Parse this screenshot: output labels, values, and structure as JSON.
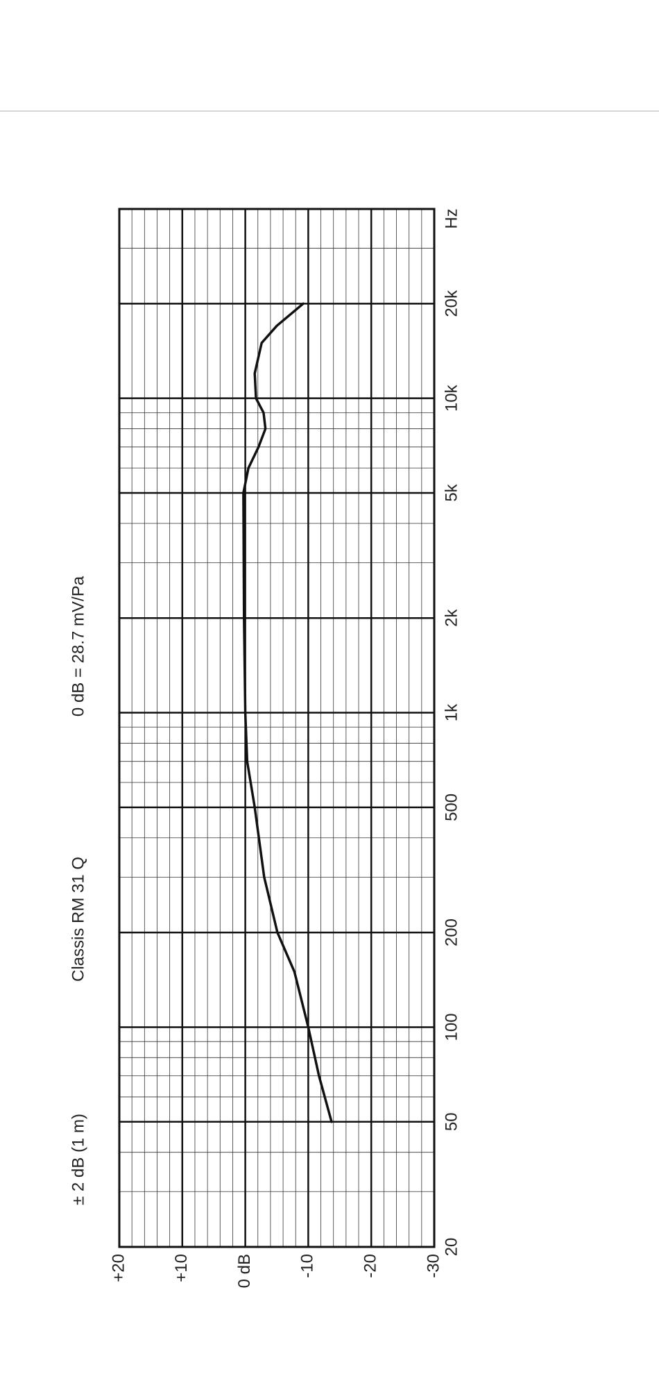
{
  "chart_data": {
    "type": "line",
    "title": "Classis RM 31 Q",
    "subtitle": "0 dB = 28.7 mV/Pa",
    "annotation": "± 2 dB (1 m)",
    "x_unit": "Hz",
    "x": [
      50,
      70,
      100,
      150,
      200,
      300,
      500,
      700,
      1000,
      2000,
      5000,
      6000,
      7000,
      8000,
      9000,
      10000,
      12000,
      15000,
      17000,
      20000
    ],
    "values": [
      -13.7,
      -11.7,
      -10,
      -7.8,
      -5.1,
      -3.0,
      -1.5,
      -0.3,
      0,
      0.2,
      0.3,
      -0.5,
      -2.1,
      -3.2,
      -2.9,
      -1.7,
      -1.5,
      -2.6,
      -5,
      -9.2
    ],
    "color": "#111111",
    "xlim": [
      20,
      40000
    ],
    "xscale": "log",
    "xticks": [
      20,
      50,
      100,
      200,
      500,
      {
        "value": 1000,
        "label": "1k"
      },
      {
        "value": 2000,
        "label": "2k"
      },
      {
        "value": 5000,
        "label": "5k"
      },
      {
        "value": 10000,
        "label": "10k"
      },
      {
        "value": 20000,
        "label": "20k"
      }
    ],
    "ylim": [
      -30,
      20
    ],
    "yticks": [
      {
        "value": 20,
        "label": "+20"
      },
      {
        "value": 10,
        "label": "+10"
      },
      {
        "value": 0,
        "label": "0 dB"
      },
      -10,
      -20,
      -30
    ],
    "grid": true,
    "minor_grid": true
  }
}
